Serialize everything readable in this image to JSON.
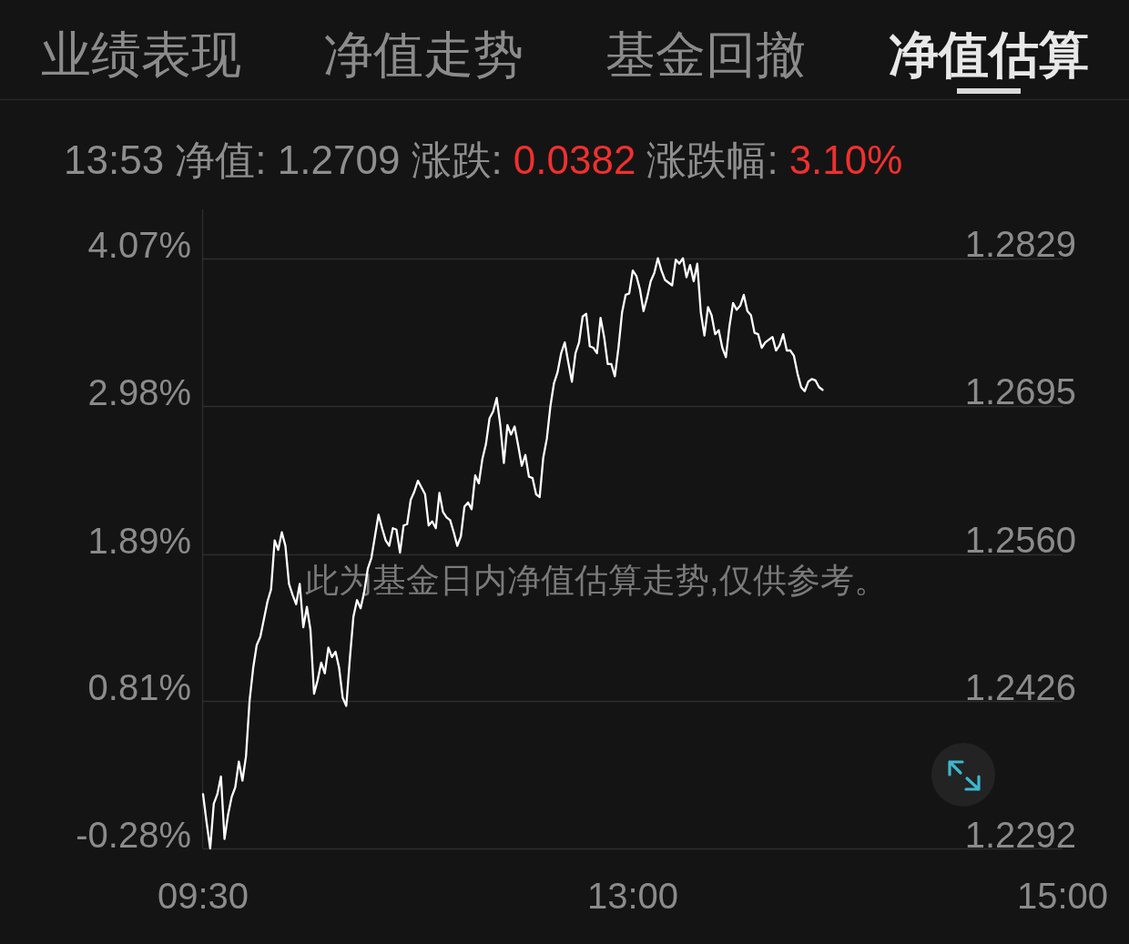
{
  "chart_data": {
    "type": "line",
    "title": "净值估算",
    "annotations": [
      "业绩表现",
      "净值走势",
      "基金回撤",
      "13:53 净值: 1.2709 涨跌:",
      "0.0382",
      "涨跌幅:",
      "3.10%",
      "此为基金日内净值估算走势,仅供参考。"
    ],
    "categories": [
      "09:30",
      null,
      null,
      null,
      null,
      null,
      null,
      null,
      null,
      null,
      null,
      null,
      null,
      null,
      null,
      null,
      null,
      null,
      null,
      null,
      null,
      null,
      null,
      null,
      null,
      null,
      null,
      null,
      null,
      null,
      null,
      null,
      null,
      null,
      null,
      null,
      null,
      null,
      null,
      null,
      null,
      null,
      null,
      null,
      null,
      null,
      null,
      null,
      null,
      null,
      null,
      null,
      null,
      null,
      null,
      null,
      null,
      null,
      null,
      null,
      null,
      null,
      null,
      null,
      null,
      null,
      null,
      null,
      null,
      null,
      null,
      null,
      null,
      null,
      null,
      null,
      null,
      null,
      null,
      null,
      null,
      null,
      null,
      null,
      null,
      null,
      null,
      null,
      null,
      null,
      null,
      null,
      null,
      null,
      null,
      null,
      null,
      null,
      null,
      null,
      null,
      null,
      null,
      null,
      null,
      null,
      null,
      null,
      null,
      null,
      null,
      null,
      null,
      null,
      null,
      null,
      null,
      null,
      null,
      null,
      "13:00",
      null,
      null,
      null,
      null,
      null,
      null,
      null,
      null,
      null,
      null,
      null,
      null,
      null,
      null,
      null,
      null,
      null,
      null,
      null,
      null,
      null,
      null,
      null,
      null,
      null,
      null,
      null,
      null,
      null,
      null,
      null,
      null,
      null,
      null,
      null,
      null,
      null,
      null,
      null,
      null,
      null,
      null,
      null,
      null,
      null,
      null,
      null,
      null,
      null,
      null,
      null,
      null,
      null,
      null,
      null,
      null,
      null,
      null,
      null,
      null,
      null,
      null,
      null,
      null,
      null,
      null,
      null,
      null,
      null,
      null,
      null,
      null,
      null,
      null,
      null,
      null,
      null,
      null,
      null,
      null,
      null,
      null,
      null,
      null,
      null,
      null,
      null,
      null,
      null,
      null,
      null,
      null,
      null,
      null,
      null,
      null,
      null,
      null,
      null,
      null,
      null,
      null,
      null,
      null,
      null,
      null,
      null,
      null,
      null,
      null,
      null,
      null,
      null,
      null,
      null,
      null,
      null,
      null,
      null,
      "15:00"
    ],
    "ylim": [
      -0.28,
      4.43
    ],
    "yticks": [
      {
        "value": -0.28,
        "label": "-0.28%"
      },
      {
        "value": 0.81,
        "label": "0.81%"
      },
      {
        "value": 1.89,
        "label": "1.89%"
      },
      {
        "value": 2.98,
        "label": "2.98%"
      },
      {
        "value": 4.07,
        "label": "4.07%"
      }
    ],
    "y2lim": [
      1.2292,
      1.2873
    ],
    "y2ticks": [
      1.2292,
      1.2426,
      {
        "value": 1.256,
        "label": "1.2560"
      },
      1.2695,
      1.2829
    ],
    "grid": "y",
    "line_style": "solid",
    "color": "#ffffff",
    "values": [
      0.12,
      -0.09,
      -0.28,
      0.05,
      0.12,
      0.25,
      -0.21,
      -0.03,
      0.1,
      0.17,
      0.36,
      0.22,
      0.4,
      0.81,
      1.05,
      1.22,
      1.28,
      1.41,
      1.54,
      1.63,
      1.99,
      1.92,
      2.05,
      1.95,
      1.67,
      1.59,
      1.52,
      1.67,
      1.35,
      1.5,
      1.33,
      0.86,
      0.96,
      1.09,
      1.01,
      1.2,
      1.13,
      1.17,
      1.05,
      0.83,
      0.77,
      1.12,
      1.43,
      1.55,
      1.49,
      1.61,
      1.78,
      1.86,
      2.02,
      2.18,
      2.08,
      1.99,
      1.95,
      2.08,
      2.07,
      1.9,
      2.1,
      2.11,
      2.29,
      2.35,
      2.43,
      2.38,
      2.33,
      2.1,
      2.13,
      2.08,
      2.34,
      2.2,
      2.16,
      2.14,
      2.05,
      1.95,
      2.02,
      2.24,
      2.27,
      2.22,
      2.47,
      2.41,
      2.59,
      2.7,
      2.89,
      2.94,
      3.04,
      2.84,
      2.56,
      2.84,
      2.77,
      2.83,
      2.69,
      2.54,
      2.62,
      2.46,
      2.45,
      2.33,
      2.31,
      2.6,
      2.74,
      2.98,
      3.15,
      3.23,
      3.37,
      3.45,
      3.3,
      3.16,
      3.37,
      3.45,
      3.64,
      3.66,
      3.42,
      3.41,
      3.37,
      3.63,
      3.49,
      3.29,
      3.29,
      3.2,
      3.41,
      3.67,
      3.8,
      3.81,
      3.98,
      3.94,
      3.84,
      3.68,
      3.78,
      3.9,
      3.96,
      4.07,
      3.98,
      3.91,
      3.89,
      3.87,
      4.06,
      4.03,
      4.07,
      3.93,
      4.02,
      3.9,
      4.03,
      3.67,
      3.5,
      3.71,
      3.65,
      3.51,
      3.54,
      3.41,
      3.34,
      3.57,
      3.74,
      3.69,
      3.72,
      3.8,
      3.68,
      3.65,
      3.52,
      3.51,
      3.41,
      3.45,
      3.47,
      3.49,
      3.39,
      3.43,
      3.51,
      3.39,
      3.39,
      3.35,
      3.22,
      3.12,
      3.09,
      3.16,
      3.18,
      3.17,
      3.12,
      3.1,
      null,
      null,
      null,
      null,
      null,
      null,
      null,
      null,
      null,
      null,
      null,
      null,
      null,
      null,
      null,
      null,
      null,
      null,
      null,
      null,
      null,
      null,
      null,
      null,
      null,
      null,
      null,
      null,
      null,
      null,
      null,
      null,
      null,
      null,
      null,
      null,
      null,
      null,
      null,
      null,
      null,
      null,
      null,
      null,
      null,
      null,
      null,
      null,
      null,
      null,
      null,
      null,
      null,
      null,
      null,
      null,
      null,
      null,
      null,
      null,
      null,
      null,
      null,
      null,
      null,
      null,
      null
    ]
  }
}
